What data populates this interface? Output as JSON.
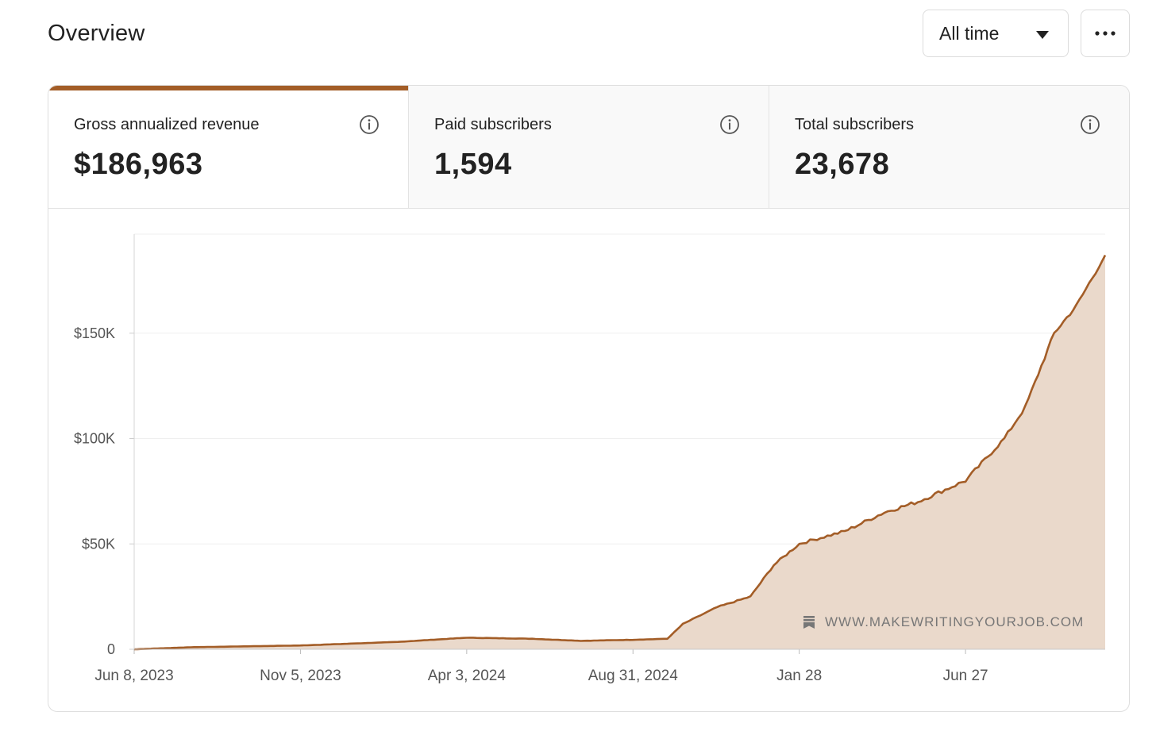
{
  "header": {
    "title": "Overview",
    "range_select": {
      "selected": "All time"
    },
    "more_icon": "more-horizontal-icon"
  },
  "metrics": [
    {
      "label": "Gross annualized revenue",
      "value": "$186,963",
      "active": true,
      "icon": "info-icon"
    },
    {
      "label": "Paid subscribers",
      "value": "1,594",
      "active": false,
      "icon": "info-icon"
    },
    {
      "label": "Total subscribers",
      "value": "23,678",
      "active": false,
      "icon": "info-icon"
    }
  ],
  "watermark": {
    "text": "WWW.MAKEWRITINGYOURJOB.COM",
    "icon": "bookmark-icon"
  },
  "colors": {
    "accent": "#a35d27",
    "fill": "#ead9cb"
  },
  "chart_data": {
    "type": "area",
    "series": [
      {
        "x": [
          "2023-06-08",
          "2023-08-01",
          "2023-11-05",
          "2024-02-01",
          "2024-04-03",
          "2024-06-01",
          "2024-07-15",
          "2024-08-31",
          "2024-10-01",
          "2024-10-15",
          "2024-11-15",
          "2024-12-15",
          "2025-01-05",
          "2025-01-28",
          "2025-02-10",
          "2025-03-10",
          "2025-04-15",
          "2025-05-15",
          "2025-06-27",
          "2025-08-01",
          "2025-08-20",
          "2025-09-15",
          "2025-10-05",
          "2025-10-31"
        ],
        "y": [
          0,
          1000,
          1800,
          3500,
          5500,
          5000,
          4000,
          4500,
          5000,
          12000,
          20000,
          25000,
          40000,
          50000,
          52000,
          56000,
          65000,
          70000,
          80000,
          100000,
          115000,
          150000,
          163000,
          187000
        ]
      }
    ],
    "xticks": [
      "Jun 8, 2023",
      "Nov 5, 2023",
      "Apr 3, 2024",
      "Aug 31, 2024",
      "Jan 28",
      "Jun 27"
    ],
    "yticks": [
      "0",
      "$50K",
      "$100K",
      "$150K"
    ],
    "ylim": [
      0,
      197000
    ],
    "grid": true,
    "legend": "none"
  }
}
